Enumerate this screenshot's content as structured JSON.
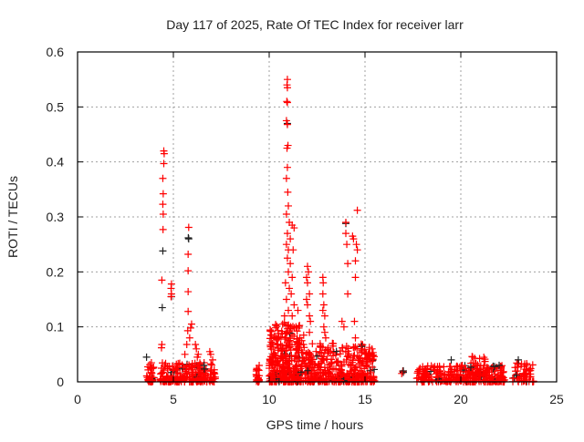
{
  "chart_data": {
    "type": "scatter",
    "title": "Day 117 of 2025, Rate Of TEC Index for receiver larr",
    "xlabel": "GPS time / hours",
    "ylabel": "ROTI / TECUs",
    "xlim": [
      0,
      25
    ],
    "ylim": [
      0,
      0.6
    ],
    "xticks": [
      "0",
      "5",
      "10",
      "15",
      "20",
      "25"
    ],
    "yticks": [
      "0",
      "0.1",
      "0.2",
      "0.3",
      "0.4",
      "0.5",
      "0.6"
    ],
    "grid": true,
    "legend": "none",
    "marker": "plus",
    "colors": {
      "primary": "#ff0000",
      "secondary": "#222222",
      "grid": "#a0a0a0"
    },
    "baseline_clusters": [
      {
        "x": [
          3.6,
          4.0
        ],
        "y": [
          0.0,
          0.035
        ],
        "count": 40
      },
      {
        "x": [
          4.3,
          7.2
        ],
        "y": [
          0.0,
          0.035
        ],
        "count": 220
      },
      {
        "x": [
          9.3,
          9.5
        ],
        "y": [
          0.0,
          0.03
        ],
        "count": 25
      },
      {
        "x": [
          10.0,
          11.6
        ],
        "y": [
          0.0,
          0.11
        ],
        "count": 320
      },
      {
        "x": [
          11.6,
          15.5
        ],
        "y": [
          0.0,
          0.07
        ],
        "count": 420
      },
      {
        "x": [
          16.9,
          17.0
        ],
        "y": [
          0.005,
          0.025
        ],
        "count": 4
      },
      {
        "x": [
          17.7,
          22.3
        ],
        "y": [
          0.0,
          0.03
        ],
        "count": 300
      },
      {
        "x": [
          20.5,
          21.3
        ],
        "y": [
          0.01,
          0.052
        ],
        "count": 30
      },
      {
        "x": [
          22.7,
          23.8
        ],
        "y": [
          0.0,
          0.035
        ],
        "count": 60
      }
    ],
    "series": [
      {
        "name": "red",
        "color": "#ff0000",
        "points": [
          [
            4.5,
            0.42
          ],
          [
            4.52,
            0.415
          ],
          [
            4.5,
            0.397
          ],
          [
            4.45,
            0.37
          ],
          [
            4.47,
            0.342
          ],
          [
            4.45,
            0.323
          ],
          [
            4.47,
            0.305
          ],
          [
            4.46,
            0.277
          ],
          [
            4.4,
            0.185
          ],
          [
            4.4,
            0.068
          ],
          [
            4.38,
            0.062
          ],
          [
            4.9,
            0.178
          ],
          [
            4.88,
            0.17
          ],
          [
            4.9,
            0.16
          ],
          [
            4.88,
            0.155
          ],
          [
            5.8,
            0.281
          ],
          [
            5.77,
            0.232
          ],
          [
            5.77,
            0.202
          ],
          [
            5.77,
            0.164
          ],
          [
            5.77,
            0.128
          ],
          [
            5.75,
            0.093
          ],
          [
            5.95,
            0.105
          ],
          [
            5.9,
            0.098
          ],
          [
            5.85,
            0.08
          ],
          [
            5.7,
            0.068
          ],
          [
            5.6,
            0.05
          ],
          [
            6.15,
            0.068
          ],
          [
            6.2,
            0.06
          ],
          [
            6.3,
            0.05
          ],
          [
            6.25,
            0.045
          ],
          [
            6.9,
            0.055
          ],
          [
            6.95,
            0.05
          ],
          [
            7.05,
            0.04
          ],
          [
            10.95,
            0.55
          ],
          [
            10.93,
            0.54
          ],
          [
            10.95,
            0.535
          ],
          [
            10.92,
            0.51
          ],
          [
            10.95,
            0.508
          ],
          [
            10.9,
            0.475
          ],
          [
            10.95,
            0.468
          ],
          [
            10.98,
            0.43
          ],
          [
            10.93,
            0.425
          ],
          [
            10.95,
            0.39
          ],
          [
            10.9,
            0.37
          ],
          [
            10.97,
            0.345
          ],
          [
            11.0,
            0.32
          ],
          [
            10.9,
            0.305
          ],
          [
            11.05,
            0.29
          ],
          [
            11.2,
            0.285
          ],
          [
            11.3,
            0.28
          ],
          [
            10.95,
            0.27
          ],
          [
            11.1,
            0.26
          ],
          [
            10.9,
            0.25
          ],
          [
            11.0,
            0.24
          ],
          [
            11.25,
            0.24
          ],
          [
            10.95,
            0.225
          ],
          [
            11.1,
            0.215
          ],
          [
            11.0,
            0.2
          ],
          [
            11.2,
            0.19
          ],
          [
            10.85,
            0.18
          ],
          [
            11.05,
            0.17
          ],
          [
            11.15,
            0.16
          ],
          [
            10.9,
            0.15
          ],
          [
            11.3,
            0.14
          ],
          [
            11.0,
            0.13
          ],
          [
            10.8,
            0.12
          ],
          [
            11.2,
            0.12
          ],
          [
            10.7,
            0.105
          ],
          [
            11.4,
            0.1
          ],
          [
            11.5,
            0.13
          ],
          [
            11.6,
            0.08
          ],
          [
            12.0,
            0.21
          ],
          [
            12.05,
            0.2
          ],
          [
            11.95,
            0.19
          ],
          [
            12.0,
            0.18
          ],
          [
            12.1,
            0.16
          ],
          [
            11.95,
            0.15
          ],
          [
            12.0,
            0.14
          ],
          [
            12.1,
            0.12
          ],
          [
            12.15,
            0.11
          ],
          [
            12.1,
            0.09
          ],
          [
            11.7,
            0.075
          ],
          [
            11.8,
            0.085
          ],
          [
            12.8,
            0.19
          ],
          [
            12.82,
            0.18
          ],
          [
            12.8,
            0.16
          ],
          [
            12.85,
            0.14
          ],
          [
            12.8,
            0.13
          ],
          [
            12.9,
            0.12
          ],
          [
            12.85,
            0.1
          ],
          [
            12.9,
            0.09
          ],
          [
            12.95,
            0.08
          ],
          [
            13.3,
            0.07
          ],
          [
            14.0,
            0.29
          ],
          [
            14.0,
            0.27
          ],
          [
            14.05,
            0.25
          ],
          [
            14.1,
            0.215
          ],
          [
            14.1,
            0.16
          ],
          [
            13.8,
            0.11
          ],
          [
            13.9,
            0.1
          ],
          [
            14.6,
            0.312
          ],
          [
            14.35,
            0.265
          ],
          [
            14.4,
            0.26
          ],
          [
            14.55,
            0.25
          ],
          [
            14.6,
            0.24
          ],
          [
            14.5,
            0.22
          ],
          [
            14.5,
            0.19
          ],
          [
            14.45,
            0.11
          ],
          [
            14.5,
            0.08
          ],
          [
            14.8,
            0.06
          ],
          [
            15.0,
            0.05
          ],
          [
            15.1,
            0.04
          ]
        ]
      },
      {
        "name": "black",
        "color": "#222222",
        "points": [
          [
            4.45,
            0.238
          ],
          [
            4.42,
            0.135
          ],
          [
            5.78,
            0.262
          ],
          [
            5.8,
            0.26
          ],
          [
            14.0,
            0.288
          ],
          [
            10.95,
            0.47
          ],
          [
            3.6,
            0.045
          ],
          [
            6.6,
            0.03
          ],
          [
            19.5,
            0.04
          ],
          [
            17.0,
            0.02
          ],
          [
            4.9,
            0.155
          ],
          [
            23.0,
            0.04
          ],
          [
            22.0,
            0.03
          ]
        ]
      }
    ]
  }
}
